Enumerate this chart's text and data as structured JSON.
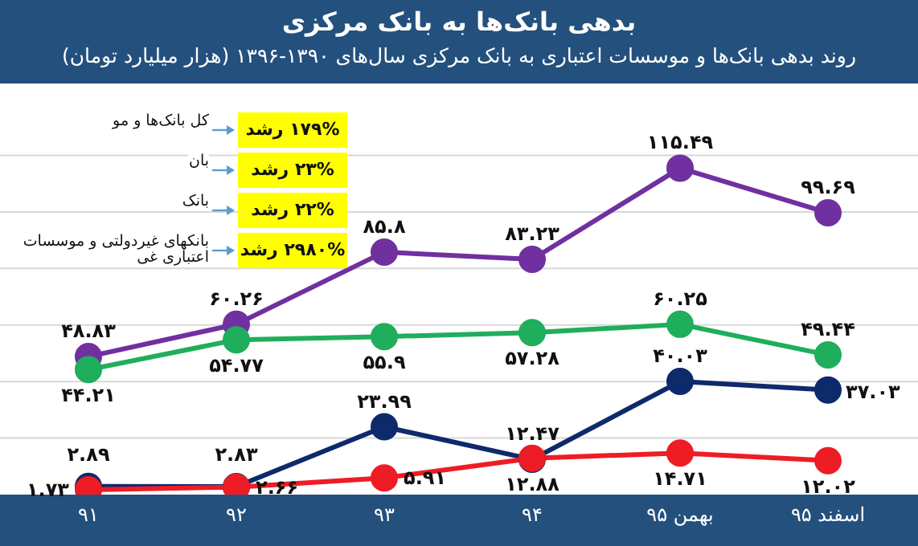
{
  "chart_data": {
    "type": "line",
    "title": "بدهی بانک‌ها به بانک مرکزی",
    "subtitle": "روند بدهی بانک‌ها و موسسات اعتباری به بانک مرکزی سال‌های ۱۳۹۰-۱۳۹۶ (هزار میلیارد تومان)",
    "categories": [
      "۹۱",
      "۹۲",
      "۹۳",
      "۹۴",
      "بهمن ۹۵",
      "اسفند ۹۵"
    ],
    "series": [
      {
        "color": "#7030a0",
        "values": [
          48.83,
          60.26,
          85.8,
          83.23,
          115.49,
          99.69
        ],
        "value_labels": [
          "۴۸.۸۳",
          "۶۰.۲۶",
          "۸۵.۸",
          "۸۳.۲۳",
          "۱۱۵.۴۹",
          "۹۹.۶۹"
        ]
      },
      {
        "color": "#1fae5b",
        "values": [
          44.21,
          54.77,
          55.9,
          57.28,
          60.25,
          49.44
        ],
        "value_labels": [
          "۴۴.۲۱",
          "۵۴.۷۷",
          "۵۵.۹",
          "۵۷.۲۸",
          "۶۰.۲۵",
          "۴۹.۴۴"
        ]
      },
      {
        "color": "#0d2a6b",
        "values": [
          2.89,
          2.83,
          23.99,
          12.47,
          40.03,
          37.03
        ],
        "value_labels": [
          "۲.۸۹",
          "۲.۸۳",
          "۲۳.۹۹",
          "۱۲.۴۷",
          "۴۰.۰۳",
          "۳۷.۰۳"
        ]
      },
      {
        "color": "#ee1c25",
        "values": [
          1.73,
          2.66,
          5.91,
          12.88,
          14.71,
          12.02
        ],
        "value_labels": [
          "۱.۷۳",
          "۲.۶۶",
          "۵.۹۱",
          "۱۲.۸۸",
          "۱۴.۷۱",
          "۱۲.۰۲"
        ]
      }
    ],
    "yticks": [
      {
        "value": 20,
        "label": null
      },
      {
        "value": 40,
        "label": null
      },
      {
        "value": 60,
        "label": null
      },
      {
        "value": 80,
        "label": null
      },
      {
        "value": 100,
        "label": null
      },
      {
        "value": 120,
        "label": null
      }
    ],
    "tick_labels": "x",
    "grid": "y",
    "legend": false,
    "marker": "circle",
    "line_style": "solid",
    "annotations": [
      "کل بانک‌ها و مو",
      "۱۷۹% رشد",
      "بان",
      "۲۳% رشد",
      "بانک",
      "۲۲% رشد",
      "بانکهای غیردولتی و موسسات اعتباری غی",
      "۲۹۸۰% رشد"
    ]
  }
}
